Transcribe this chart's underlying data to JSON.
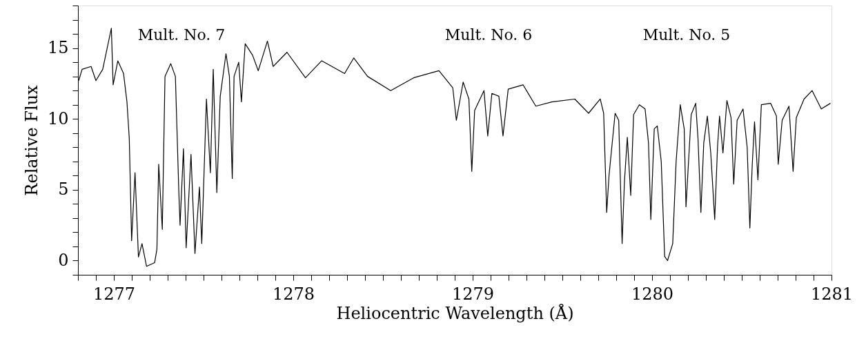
{
  "chart_data": {
    "type": "line",
    "xlabel": "Heliocentric Wavelength (Å)",
    "ylabel": "Relative Flux",
    "xlim": [
      1276.8,
      1281
    ],
    "ylim": [
      -1,
      18
    ],
    "xticks": [
      {
        "value": 1276.8,
        "label": null
      },
      {
        "value": 1276.9,
        "label": null
      },
      1277,
      {
        "value": 1277.1,
        "label": null
      },
      {
        "value": 1277.2,
        "label": null
      },
      {
        "value": 1277.3,
        "label": null
      },
      {
        "value": 1277.4,
        "label": null
      },
      {
        "value": 1277.5,
        "label": null
      },
      {
        "value": 1277.6,
        "label": null
      },
      {
        "value": 1277.7,
        "label": null
      },
      {
        "value": 1277.8,
        "label": null
      },
      {
        "value": 1277.9,
        "label": null
      },
      1278,
      {
        "value": 1278.1,
        "label": null
      },
      {
        "value": 1278.2,
        "label": null
      },
      {
        "value": 1278.3,
        "label": null
      },
      {
        "value": 1278.4,
        "label": null
      },
      {
        "value": 1278.5,
        "label": null
      },
      {
        "value": 1278.6,
        "label": null
      },
      {
        "value": 1278.7,
        "label": null
      },
      {
        "value": 1278.8,
        "label": null
      },
      {
        "value": 1278.9,
        "label": null
      },
      1279,
      {
        "value": 1279.1,
        "label": null
      },
      {
        "value": 1279.2,
        "label": null
      },
      {
        "value": 1279.3,
        "label": null
      },
      {
        "value": 1279.4,
        "label": null
      },
      {
        "value": 1279.5,
        "label": null
      },
      {
        "value": 1279.6,
        "label": null
      },
      {
        "value": 1279.7,
        "label": null
      },
      {
        "value": 1279.8,
        "label": null
      },
      {
        "value": 1279.9,
        "label": null
      },
      1280,
      {
        "value": 1280.1,
        "label": null
      },
      {
        "value": 1280.2,
        "label": null
      },
      {
        "value": 1280.3,
        "label": null
      },
      {
        "value": 1280.4,
        "label": null
      },
      {
        "value": 1280.5,
        "label": null
      },
      {
        "value": 1280.6,
        "label": null
      },
      {
        "value": 1280.7,
        "label": null
      },
      {
        "value": 1280.8,
        "label": null
      },
      {
        "value": 1280.9,
        "label": null
      },
      1281
    ],
    "yticks": [
      {
        "value": -1,
        "label": null
      },
      0,
      {
        "value": 1,
        "label": null
      },
      {
        "value": 2,
        "label": null
      },
      {
        "value": 3,
        "label": null
      },
      {
        "value": 4,
        "label": null
      },
      5,
      {
        "value": 6,
        "label": null
      },
      {
        "value": 7,
        "label": null
      },
      {
        "value": 8,
        "label": null
      },
      {
        "value": 9,
        "label": null
      },
      10,
      {
        "value": 11,
        "label": null
      },
      {
        "value": 12,
        "label": null
      },
      {
        "value": 13,
        "label": null
      },
      {
        "value": 14,
        "label": null
      },
      15,
      {
        "value": 16,
        "label": null
      },
      {
        "value": 17,
        "label": null
      },
      {
        "value": 18,
        "label": null
      }
    ],
    "grid": false,
    "marker": "none",
    "line_style": "solid",
    "annotations": [
      "Mult. No. 7",
      "Mult. No. 6",
      "Mult. No. 5"
    ],
    "series": [
      {
        "color": "#000000",
        "x": [
          1276.804,
          1276.823,
          1276.873,
          1276.9,
          1276.938,
          1276.986,
          1276.996,
          1277.022,
          1277.054,
          1277.073,
          1277.086,
          1277.099,
          1277.118,
          1277.137,
          1277.157,
          1277.182,
          1277.227,
          1277.24,
          1277.25,
          1277.27,
          1277.285,
          1277.317,
          1277.343,
          1277.362,
          1277.369,
          1277.388,
          1277.403,
          1277.43,
          1277.452,
          1277.477,
          1277.49,
          1277.516,
          1277.538,
          1277.554,
          1277.574,
          1277.593,
          1277.625,
          1277.644,
          1277.66,
          1277.67,
          1277.696,
          1277.711,
          1277.732,
          1277.773,
          1277.805,
          1277.856,
          1277.888,
          1277.965,
          1278.068,
          1278.158,
          1278.286,
          1278.337,
          1278.414,
          1278.543,
          1278.671,
          1278.812,
          1278.889,
          1278.909,
          1278.947,
          1278.979,
          1278.995,
          1279.011,
          1279.063,
          1279.084,
          1279.107,
          1279.146,
          1279.169,
          1279.198,
          1279.281,
          1279.352,
          1279.441,
          1279.569,
          1279.646,
          1279.711,
          1279.73,
          1279.747,
          1279.76,
          1279.794,
          1279.814,
          1279.833,
          1279.846,
          1279.862,
          1279.881,
          1279.897,
          1279.929,
          1279.961,
          1279.98,
          1279.993,
          1280.012,
          1280.029,
          1280.051,
          1280.07,
          1280.086,
          1280.115,
          1280.134,
          1280.157,
          1280.179,
          1280.189,
          1280.201,
          1280.218,
          1280.243,
          1280.256,
          1280.272,
          1280.288,
          1280.308,
          1280.327,
          1280.349,
          1280.365,
          1280.376,
          1280.395,
          1280.417,
          1280.44,
          1280.455,
          1280.474,
          1280.507,
          1280.53,
          1280.545,
          1280.558,
          1280.571,
          1280.59,
          1280.609,
          1280.661,
          1280.693,
          1280.703,
          1280.725,
          1280.763,
          1280.786,
          1280.804,
          1280.847,
          1280.892,
          1280.943,
          1280.994
        ],
        "values": [
          12.7,
          13.5,
          13.7,
          12.7,
          13.5,
          16.4,
          12.4,
          14.1,
          13.2,
          11.2,
          8.6,
          1.4,
          6.2,
          0.25,
          1.2,
          -0.4,
          -0.15,
          0.8,
          6.8,
          2.2,
          13.0,
          13.9,
          13.0,
          4.9,
          2.5,
          7.9,
          0.9,
          7.5,
          0.5,
          5.2,
          1.2,
          11.4,
          6.2,
          13.5,
          4.8,
          11.6,
          14.6,
          13.0,
          5.8,
          13.0,
          14.0,
          11.2,
          15.3,
          14.5,
          13.4,
          15.5,
          13.7,
          14.7,
          12.9,
          14.1,
          13.2,
          14.3,
          13.0,
          12.0,
          12.9,
          13.4,
          12.2,
          9.9,
          12.6,
          11.4,
          6.3,
          10.6,
          12.0,
          8.8,
          11.8,
          11.6,
          8.8,
          12.1,
          12.4,
          10.9,
          11.2,
          11.4,
          10.4,
          11.4,
          10.4,
          3.4,
          6.0,
          10.4,
          9.9,
          1.2,
          5.6,
          8.7,
          4.6,
          10.3,
          11.0,
          10.7,
          8.3,
          2.9,
          9.3,
          9.5,
          7.0,
          0.3,
          0.0,
          1.2,
          7.0,
          11.0,
          9.3,
          3.8,
          6.5,
          10.3,
          11.1,
          8.6,
          3.4,
          8.3,
          10.2,
          7.6,
          2.9,
          8.1,
          10.2,
          7.6,
          11.3,
          10.1,
          5.4,
          9.9,
          10.7,
          8.0,
          2.3,
          6.7,
          9.8,
          5.7,
          11.0,
          11.1,
          10.2,
          6.8,
          9.9,
          10.9,
          6.3,
          10.1,
          11.4,
          12.0,
          10.7,
          11.1
        ]
      }
    ]
  }
}
